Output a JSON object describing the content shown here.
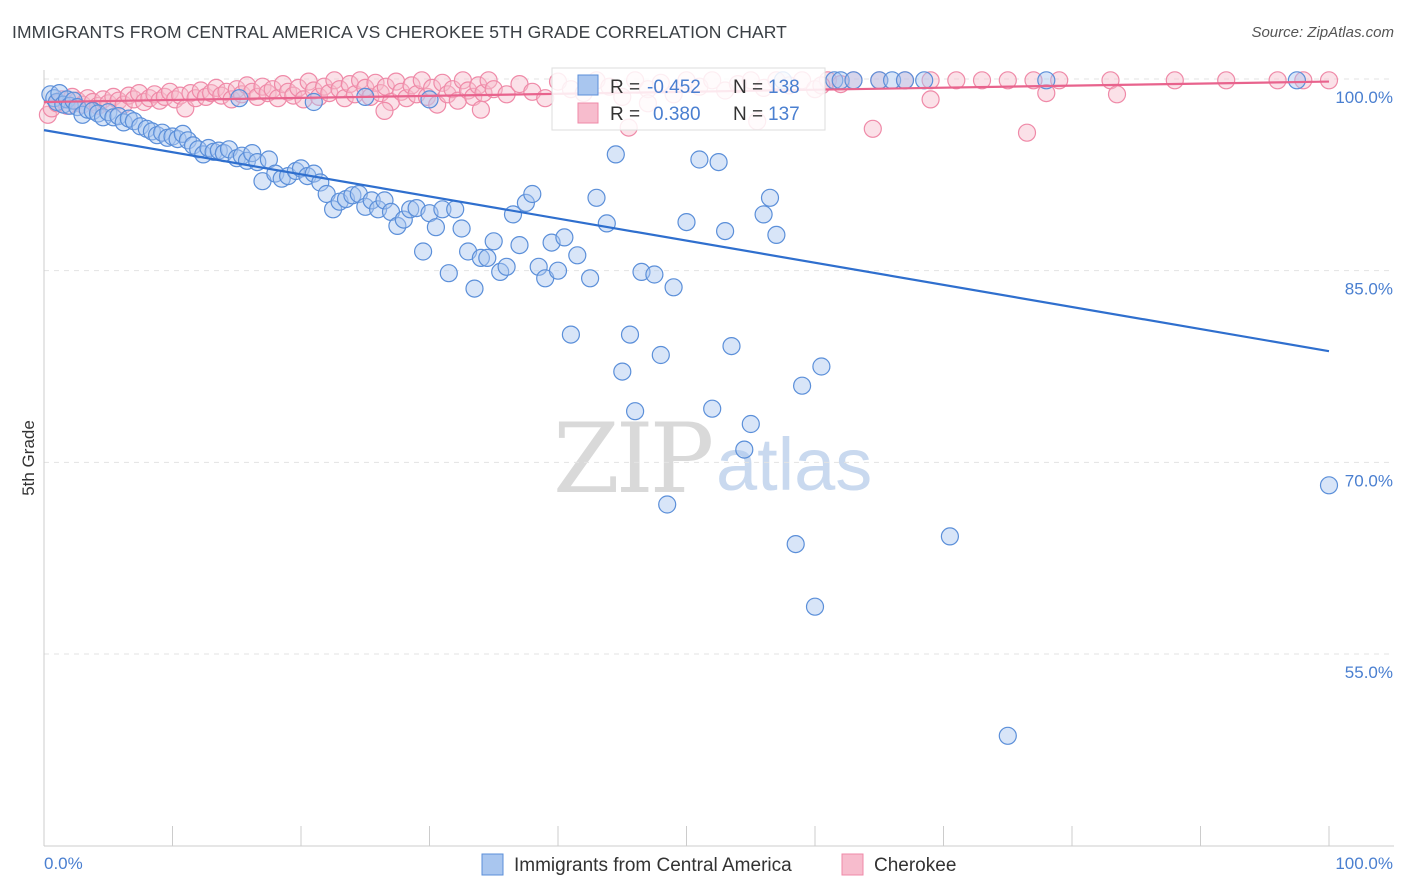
{
  "title": "IMMIGRANTS FROM CENTRAL AMERICA VS CHEROKEE 5TH GRADE CORRELATION CHART",
  "source": "Source: ZipAtlas.com",
  "watermark": {
    "zip": "ZIP",
    "atlas": "atlas"
  },
  "colors": {
    "blue": "#5b8fd9",
    "blue_fill": "#a9c6ef",
    "blue_line": "#2f6fce",
    "pink": "#ef8aa8",
    "pink_fill": "#f7bccd",
    "pink_line": "#e8638d",
    "tick": "#4a7fd0"
  },
  "stats": [
    {
      "r_label": "R =",
      "r_value": "-0.452",
      "n_label": "N =",
      "n_value": "138"
    },
    {
      "r_label": "R =",
      "r_value": "0.380",
      "n_label": "N =",
      "n_value": "137"
    }
  ],
  "chart_data": {
    "type": "scatter",
    "title": "IMMIGRANTS FROM CENTRAL AMERICA VS CHEROKEE 5TH GRADE CORRELATION CHART",
    "xlabel": "",
    "ylabel": "5th Grade",
    "xlim": [
      0,
      100
    ],
    "ylim": [
      40,
      101.5
    ],
    "x_ticks": [
      "0.0%",
      "100.0%"
    ],
    "y_ticks": [
      {
        "value": 100,
        "label": "100.0%"
      },
      {
        "value": 85,
        "label": "85.0%"
      },
      {
        "value": 70,
        "label": "70.0%"
      },
      {
        "value": 55,
        "label": "55.0%"
      }
    ],
    "grid": "dashed horizontal",
    "legend_position": "bottom",
    "series": [
      {
        "name": "Immigrants from Central America",
        "color": "#5b8fd9",
        "trend": {
          "x": [
            0,
            100
          ],
          "y": [
            96.0,
            78.7
          ]
        },
        "points": [
          [
            0.5,
            98.8
          ],
          [
            0.8,
            98.5
          ],
          [
            1.0,
            98.2
          ],
          [
            1.2,
            98.9
          ],
          [
            1.5,
            98.0
          ],
          [
            1.8,
            98.4
          ],
          [
            2.0,
            97.9
          ],
          [
            2.3,
            98.3
          ],
          [
            2.6,
            97.8
          ],
          [
            3.0,
            97.2
          ],
          [
            3.4,
            97.6
          ],
          [
            3.8,
            97.5
          ],
          [
            4.2,
            97.3
          ],
          [
            4.6,
            97.0
          ],
          [
            5.0,
            97.4
          ],
          [
            5.4,
            97.0
          ],
          [
            5.8,
            97.1
          ],
          [
            6.2,
            96.6
          ],
          [
            6.6,
            96.9
          ],
          [
            7.0,
            96.7
          ],
          [
            7.5,
            96.3
          ],
          [
            8.0,
            96.1
          ],
          [
            8.4,
            95.9
          ],
          [
            8.8,
            95.6
          ],
          [
            9.2,
            95.8
          ],
          [
            9.6,
            95.4
          ],
          [
            10.0,
            95.5
          ],
          [
            10.4,
            95.3
          ],
          [
            10.8,
            95.7
          ],
          [
            11.2,
            95.2
          ],
          [
            11.6,
            94.8
          ],
          [
            12.0,
            94.5
          ],
          [
            12.4,
            94.1
          ],
          [
            12.8,
            94.6
          ],
          [
            13.2,
            94.3
          ],
          [
            13.6,
            94.4
          ],
          [
            14.0,
            94.2
          ],
          [
            14.4,
            94.5
          ],
          [
            15.0,
            93.8
          ],
          [
            15.4,
            94.0
          ],
          [
            15.8,
            93.6
          ],
          [
            16.2,
            94.2
          ],
          [
            16.6,
            93.5
          ],
          [
            17.0,
            92.0
          ],
          [
            17.5,
            93.7
          ],
          [
            18.0,
            92.6
          ],
          [
            18.5,
            92.2
          ],
          [
            19.0,
            92.4
          ],
          [
            19.6,
            92.8
          ],
          [
            20.0,
            93.0
          ],
          [
            20.5,
            92.4
          ],
          [
            21.0,
            92.6
          ],
          [
            21.5,
            91.9
          ],
          [
            22.0,
            91.0
          ],
          [
            22.5,
            89.8
          ],
          [
            23.0,
            90.4
          ],
          [
            23.5,
            90.6
          ],
          [
            24.0,
            90.9
          ],
          [
            24.5,
            91.0
          ],
          [
            25.0,
            90.0
          ],
          [
            25.5,
            90.5
          ],
          [
            26.0,
            89.8
          ],
          [
            26.5,
            90.5
          ],
          [
            27.0,
            89.6
          ],
          [
            27.5,
            88.5
          ],
          [
            28.0,
            89.0
          ],
          [
            28.5,
            89.8
          ],
          [
            29.0,
            89.9
          ],
          [
            29.5,
            86.5
          ],
          [
            30.0,
            89.5
          ],
          [
            30.5,
            88.4
          ],
          [
            31.0,
            89.8
          ],
          [
            31.5,
            84.8
          ],
          [
            32.0,
            89.8
          ],
          [
            32.5,
            88.3
          ],
          [
            33.0,
            86.5
          ],
          [
            33.5,
            83.6
          ],
          [
            34.0,
            86.0
          ],
          [
            34.5,
            86.0
          ],
          [
            35.0,
            87.3
          ],
          [
            35.5,
            84.9
          ],
          [
            36.0,
            85.3
          ],
          [
            36.5,
            89.4
          ],
          [
            37.0,
            87.0
          ],
          [
            37.5,
            90.3
          ],
          [
            38.0,
            91.0
          ],
          [
            38.5,
            85.3
          ],
          [
            39.0,
            84.4
          ],
          [
            39.5,
            87.2
          ],
          [
            40.0,
            85.0
          ],
          [
            40.5,
            87.6
          ],
          [
            41.0,
            80.0
          ],
          [
            41.5,
            86.2
          ],
          [
            42.5,
            84.4
          ],
          [
            43.0,
            90.7
          ],
          [
            43.8,
            88.7
          ],
          [
            44.5,
            94.1
          ],
          [
            45.0,
            77.1
          ],
          [
            45.6,
            80.0
          ],
          [
            46.0,
            74.0
          ],
          [
            46.5,
            84.9
          ],
          [
            47.5,
            84.7
          ],
          [
            48.0,
            78.4
          ],
          [
            49.0,
            83.7
          ],
          [
            50.0,
            88.8
          ],
          [
            51.0,
            93.7
          ],
          [
            52.0,
            74.2
          ],
          [
            52.5,
            93.5
          ],
          [
            53.0,
            88.1
          ],
          [
            53.5,
            79.1
          ],
          [
            54.5,
            71.0
          ],
          [
            55.0,
            73.0
          ],
          [
            56.0,
            89.4
          ],
          [
            56.5,
            90.7
          ],
          [
            57.0,
            87.8
          ],
          [
            57.5,
            99.9
          ],
          [
            58.5,
            63.6
          ],
          [
            59.0,
            76.0
          ],
          [
            60.0,
            58.7
          ],
          [
            60.5,
            77.5
          ],
          [
            61.5,
            99.9
          ],
          [
            62.0,
            99.9
          ],
          [
            63.0,
            99.9
          ],
          [
            65.0,
            99.9
          ],
          [
            66.0,
            99.9
          ],
          [
            67.0,
            99.9
          ],
          [
            68.5,
            99.9
          ],
          [
            70.5,
            64.2
          ],
          [
            75.0,
            48.6
          ],
          [
            78.0,
            99.9
          ],
          [
            97.5,
            99.9
          ],
          [
            100.0,
            68.2
          ],
          [
            48.5,
            66.7
          ],
          [
            15.2,
            98.5
          ],
          [
            21.0,
            98.2
          ],
          [
            25.0,
            98.6
          ],
          [
            30.0,
            98.4
          ]
        ]
      },
      {
        "name": "Cherokee",
        "color": "#ef8aa8",
        "trend": {
          "x": [
            0,
            100
          ],
          "y": [
            98.2,
            99.8
          ]
        },
        "points": [
          [
            0.3,
            97.2
          ],
          [
            0.6,
            97.7
          ],
          [
            1.0,
            98.1
          ],
          [
            1.4,
            98.4
          ],
          [
            1.8,
            97.9
          ],
          [
            2.2,
            98.6
          ],
          [
            2.6,
            98.3
          ],
          [
            3.0,
            98.0
          ],
          [
            3.4,
            98.5
          ],
          [
            3.8,
            98.2
          ],
          [
            4.2,
            97.9
          ],
          [
            4.6,
            98.4
          ],
          [
            5.0,
            98.1
          ],
          [
            5.4,
            98.6
          ],
          [
            5.8,
            98.3
          ],
          [
            6.2,
            98.0
          ],
          [
            6.6,
            98.7
          ],
          [
            7.0,
            98.4
          ],
          [
            7.4,
            98.9
          ],
          [
            7.8,
            98.2
          ],
          [
            8.2,
            98.5
          ],
          [
            8.6,
            98.8
          ],
          [
            9.0,
            98.3
          ],
          [
            9.4,
            98.6
          ],
          [
            9.8,
            99.0
          ],
          [
            10.2,
            98.4
          ],
          [
            10.6,
            98.7
          ],
          [
            11.0,
            97.7
          ],
          [
            11.4,
            98.9
          ],
          [
            11.8,
            98.5
          ],
          [
            12.2,
            99.1
          ],
          [
            12.6,
            98.6
          ],
          [
            13.0,
            98.9
          ],
          [
            13.4,
            99.3
          ],
          [
            13.8,
            98.7
          ],
          [
            14.2,
            99.0
          ],
          [
            14.6,
            98.4
          ],
          [
            15.0,
            99.2
          ],
          [
            15.4,
            98.8
          ],
          [
            15.8,
            99.5
          ],
          [
            16.2,
            99.0
          ],
          [
            16.6,
            98.6
          ],
          [
            17.0,
            99.4
          ],
          [
            17.4,
            98.9
          ],
          [
            17.8,
            99.2
          ],
          [
            18.2,
            98.5
          ],
          [
            18.6,
            99.6
          ],
          [
            19.0,
            99.0
          ],
          [
            19.4,
            98.7
          ],
          [
            19.8,
            99.3
          ],
          [
            20.2,
            98.4
          ],
          [
            20.6,
            99.8
          ],
          [
            21.0,
            99.1
          ],
          [
            21.4,
            98.6
          ],
          [
            21.8,
            99.4
          ],
          [
            22.2,
            98.9
          ],
          [
            22.6,
            99.9
          ],
          [
            23.0,
            99.2
          ],
          [
            23.4,
            98.5
          ],
          [
            23.8,
            99.6
          ],
          [
            24.2,
            98.8
          ],
          [
            24.6,
            99.9
          ],
          [
            25.0,
            99.3
          ],
          [
            25.4,
            98.6
          ],
          [
            25.8,
            99.7
          ],
          [
            26.2,
            98.9
          ],
          [
            26.6,
            99.4
          ],
          [
            27.0,
            98.2
          ],
          [
            27.4,
            99.8
          ],
          [
            27.8,
            99.0
          ],
          [
            28.2,
            98.5
          ],
          [
            28.6,
            99.5
          ],
          [
            29.0,
            98.8
          ],
          [
            29.4,
            99.9
          ],
          [
            29.8,
            98.6
          ],
          [
            30.2,
            99.3
          ],
          [
            30.6,
            98.0
          ],
          [
            31.0,
            99.7
          ],
          [
            31.4,
            98.8
          ],
          [
            31.8,
            99.2
          ],
          [
            32.2,
            98.3
          ],
          [
            32.6,
            99.9
          ],
          [
            33.0,
            99.1
          ],
          [
            33.4,
            98.6
          ],
          [
            33.8,
            99.5
          ],
          [
            34.2,
            98.9
          ],
          [
            34.6,
            99.9
          ],
          [
            35.0,
            99.2
          ],
          [
            36.0,
            98.8
          ],
          [
            37.0,
            99.6
          ],
          [
            38.0,
            99.0
          ],
          [
            39.0,
            98.5
          ],
          [
            40.0,
            99.8
          ],
          [
            41.0,
            99.2
          ],
          [
            42.0,
            98.9
          ],
          [
            43.0,
            99.9
          ],
          [
            44.0,
            99.4
          ],
          [
            45.0,
            98.6
          ],
          [
            46.0,
            99.9
          ],
          [
            47.0,
            99.2
          ],
          [
            48.0,
            99.7
          ],
          [
            49.0,
            98.8
          ],
          [
            50.0,
            99.9
          ],
          [
            51.0,
            99.4
          ],
          [
            52.0,
            99.9
          ],
          [
            53.0,
            99.1
          ],
          [
            54.0,
            99.6
          ],
          [
            55.0,
            99.9
          ],
          [
            56.0,
            99.3
          ],
          [
            57.0,
            99.9
          ],
          [
            58.0,
            99.5
          ],
          [
            59.0,
            99.9
          ],
          [
            60.0,
            99.2
          ],
          [
            61.0,
            99.9
          ],
          [
            62.0,
            99.6
          ],
          [
            63.0,
            99.9
          ],
          [
            65.0,
            99.9
          ],
          [
            67.0,
            99.9
          ],
          [
            69.0,
            99.9
          ],
          [
            71.0,
            99.9
          ],
          [
            73.0,
            99.9
          ],
          [
            75.0,
            99.9
          ],
          [
            77.0,
            99.9
          ],
          [
            79.0,
            99.9
          ],
          [
            83.0,
            99.9
          ],
          [
            88.0,
            99.9
          ],
          [
            92.0,
            99.9
          ],
          [
            96.0,
            99.9
          ],
          [
            98.0,
            99.9
          ],
          [
            100.0,
            99.9
          ],
          [
            45.5,
            96.2
          ],
          [
            55.5,
            96.7
          ],
          [
            64.5,
            96.1
          ],
          [
            69.0,
            98.4
          ],
          [
            76.5,
            95.8
          ],
          [
            60.5,
            99.5
          ],
          [
            78.0,
            98.9
          ],
          [
            83.5,
            98.8
          ],
          [
            47.0,
            98.1
          ],
          [
            34.0,
            97.6
          ],
          [
            26.5,
            97.5
          ]
        ]
      }
    ]
  },
  "legend": [
    {
      "label": "Immigrants from Central America"
    },
    {
      "label": "Cherokee"
    }
  ]
}
